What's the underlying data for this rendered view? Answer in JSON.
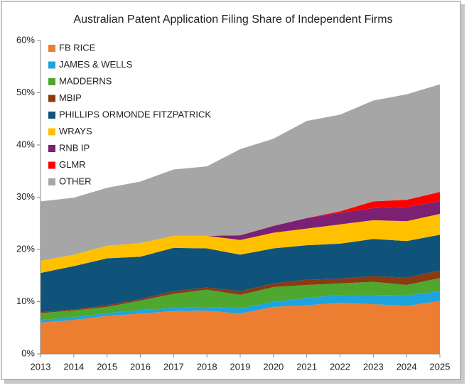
{
  "chart_data": {
    "type": "stacked_area",
    "title": "Australian Patent Application Filing Share of Independent Firms",
    "x": [
      2013,
      2014,
      2015,
      2016,
      2017,
      2018,
      2019,
      2020,
      2021,
      2022,
      2023,
      2024,
      2025
    ],
    "xlim": [
      2013,
      2025
    ],
    "xticks": [
      2013,
      2014,
      2015,
      2016,
      2017,
      2018,
      2019,
      2020,
      2021,
      2022,
      2023,
      2024,
      2025
    ],
    "ylim": [
      0,
      60
    ],
    "yticks": [
      {
        "value": 0,
        "label": "0%"
      },
      {
        "value": 10,
        "label": "10%"
      },
      {
        "value": 20,
        "label": "20%"
      },
      {
        "value": 30,
        "label": "30%"
      },
      {
        "value": 40,
        "label": "40%"
      },
      {
        "value": 50,
        "label": "50%"
      },
      {
        "value": 60,
        "label": "60%"
      }
    ],
    "grid": false,
    "legend": "top-left",
    "series": [
      {
        "name": "FB RICE",
        "color": "#ed7d31",
        "values": [
          6.0,
          6.5,
          7.3,
          7.7,
          8.2,
          8.3,
          7.7,
          9.0,
          9.3,
          9.8,
          9.5,
          9.2,
          10.1
        ]
      },
      {
        "name": "JAMES & WELLS",
        "color": "#1fa3e0",
        "values": [
          0.5,
          0.5,
          0.5,
          0.7,
          0.6,
          0.7,
          1.0,
          1.0,
          1.4,
          1.5,
          1.8,
          2.0,
          1.9
        ]
      },
      {
        "name": "MADDERNS",
        "color": "#4ea72e",
        "values": [
          1.3,
          1.3,
          1.2,
          1.8,
          2.7,
          3.3,
          2.6,
          2.8,
          2.5,
          2.2,
          2.5,
          2.0,
          2.5
        ]
      },
      {
        "name": "MBIP",
        "color": "#8b3a12",
        "values": [
          0.2,
          0.2,
          0.3,
          0.3,
          0.5,
          0.4,
          0.7,
          0.7,
          1.0,
          0.9,
          1.1,
          1.4,
          1.5
        ]
      },
      {
        "name": "PHILLIPS ORMONDE FITZPATRICK",
        "color": "#0f527a",
        "values": [
          7.5,
          8.3,
          9.0,
          8.1,
          8.3,
          7.5,
          7.0,
          6.7,
          6.6,
          6.7,
          7.1,
          7.0,
          6.8
        ]
      },
      {
        "name": "WRAYS",
        "color": "#ffc000",
        "values": [
          2.3,
          2.2,
          2.4,
          2.6,
          2.3,
          2.4,
          2.8,
          3.0,
          3.2,
          3.7,
          3.6,
          3.8,
          4.0
        ]
      },
      {
        "name": "RNB IP",
        "color": "#7b2073",
        "values": [
          0,
          0,
          0,
          0,
          0,
          0,
          0.9,
          1.3,
          2.0,
          2.2,
          2.3,
          2.7,
          2.4
        ]
      },
      {
        "name": "GLMR",
        "color": "#ff0000",
        "values": [
          0,
          0,
          0,
          0,
          0,
          0,
          0,
          0,
          0,
          0.3,
          1.3,
          1.4,
          1.8
        ]
      },
      {
        "name": "OTHER",
        "color": "#a6a6a6",
        "values": [
          11.4,
          10.9,
          11.1,
          11.8,
          12.7,
          13.3,
          16.5,
          16.7,
          18.6,
          18.5,
          19.3,
          20.2,
          20.6
        ]
      }
    ]
  }
}
